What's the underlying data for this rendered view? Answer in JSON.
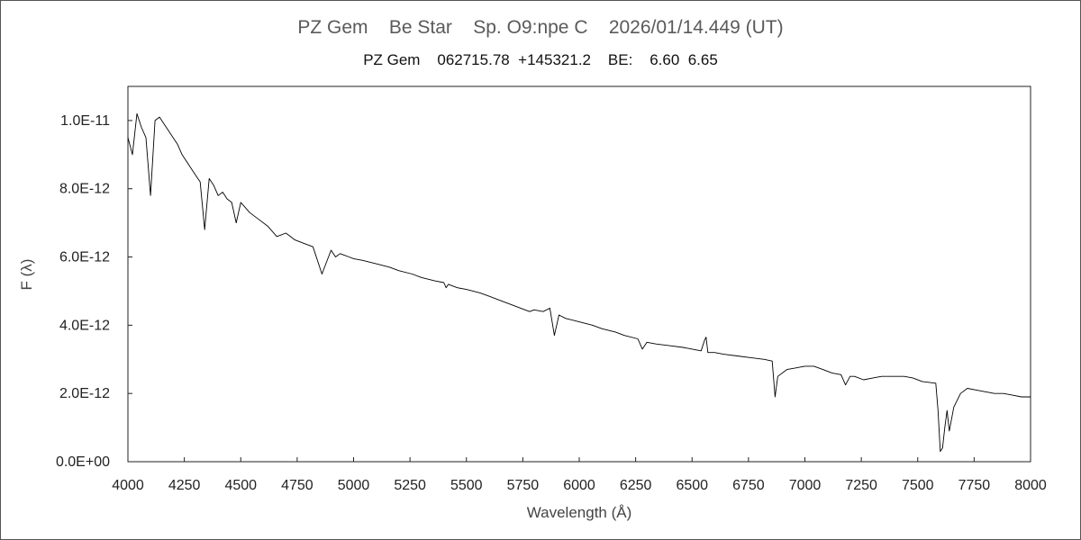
{
  "chart_data": {
    "type": "line",
    "title": "PZ Gem    Be Star    Sp. O9:npe C    2026/01/14.449 (UT)",
    "subtitle": "PZ Gem    062715.78  +145321.2    BE:    6.60  6.65",
    "xlabel": "Wavelength (Å)",
    "ylabel": "F (λ)",
    "xlim": [
      4000,
      8000
    ],
    "ylim": [
      0,
      1.1e-11
    ],
    "grid": false,
    "legend": "none",
    "line_color": "#000000",
    "x_ticks": [
      4000,
      4250,
      4500,
      4750,
      5000,
      5250,
      5500,
      5750,
      6000,
      6250,
      6500,
      6750,
      7000,
      7250,
      7500,
      7750,
      8000
    ],
    "x_tick_labels": [
      "4000",
      "4250",
      "4500",
      "4750",
      "5000",
      "5250",
      "5500",
      "5750",
      "6000",
      "6250",
      "6500",
      "6750",
      "7000",
      "7250",
      "7500",
      "7750",
      "8000"
    ],
    "y_ticks": [
      0,
      2e-12,
      4e-12,
      6e-12,
      8e-12,
      1e-11
    ],
    "y_tick_labels": [
      "0.0E+00",
      "2.0E-12",
      "4.0E-12",
      "6.0E-12",
      "8.0E-12",
      "1.0E-11"
    ],
    "series": [
      {
        "x": [
          4000,
          4020,
          4040,
          4060,
          4080,
          4100,
          4120,
          4140,
          4160,
          4180,
          4200,
          4220,
          4240,
          4260,
          4280,
          4300,
          4320,
          4340,
          4360,
          4380,
          4400,
          4420,
          4440,
          4460,
          4480,
          4500,
          4540,
          4580,
          4620,
          4660,
          4700,
          4740,
          4780,
          4820,
          4860,
          4900,
          4920,
          4940,
          4980,
          5000,
          5040,
          5100,
          5160,
          5200,
          5260,
          5300,
          5360,
          5400,
          5410,
          5420,
          5460,
          5500,
          5560,
          5600,
          5660,
          5700,
          5740,
          5780,
          5800,
          5840,
          5870,
          5890,
          5910,
          5940,
          6000,
          6060,
          6100,
          6160,
          6200,
          6260,
          6280,
          6300,
          6340,
          6400,
          6460,
          6500,
          6540,
          6555,
          6562,
          6570,
          6600,
          6640,
          6700,
          6760,
          6820,
          6855,
          6868,
          6880,
          6920,
          6960,
          7000,
          7040,
          7080,
          7120,
          7160,
          7180,
          7200,
          7220,
          7260,
          7300,
          7340,
          7400,
          7440,
          7480,
          7520,
          7580,
          7590,
          7600,
          7610,
          7620,
          7630,
          7640,
          7660,
          7690,
          7720,
          7760,
          7800,
          7840,
          7880,
          7920,
          7960,
          8000
        ],
        "y": [
          9.5e-12,
          9e-12,
          1.02e-11,
          9.8e-12,
          9.5e-12,
          7.8e-12,
          1e-11,
          1.01e-11,
          9.9e-12,
          9.7e-12,
          9.5e-12,
          9.3e-12,
          9e-12,
          8.8e-12,
          8.6e-12,
          8.4e-12,
          8.2e-12,
          6.8e-12,
          8.3e-12,
          8.1e-12,
          7.8e-12,
          7.9e-12,
          7.7e-12,
          7.6e-12,
          7e-12,
          7.6e-12,
          7.3e-12,
          7.1e-12,
          6.9e-12,
          6.6e-12,
          6.7e-12,
          6.5e-12,
          6.4e-12,
          6.3e-12,
          5.5e-12,
          6.2e-12,
          6e-12,
          6.1e-12,
          6e-12,
          5.95e-12,
          5.9e-12,
          5.8e-12,
          5.7e-12,
          5.6e-12,
          5.5e-12,
          5.4e-12,
          5.3e-12,
          5.25e-12,
          5.1e-12,
          5.2e-12,
          5.1e-12,
          5.05e-12,
          4.95e-12,
          4.85e-12,
          4.7e-12,
          4.6e-12,
          4.5e-12,
          4.4e-12,
          4.45e-12,
          4.4e-12,
          4.5e-12,
          3.7e-12,
          4.3e-12,
          4.2e-12,
          4.1e-12,
          4e-12,
          3.9e-12,
          3.8e-12,
          3.7e-12,
          3.6e-12,
          3.3e-12,
          3.5e-12,
          3.45e-12,
          3.4e-12,
          3.35e-12,
          3.3e-12,
          3.25e-12,
          3.55e-12,
          3.65e-12,
          3.2e-12,
          3.2e-12,
          3.15e-12,
          3.1e-12,
          3.05e-12,
          3e-12,
          2.95e-12,
          1.9e-12,
          2.5e-12,
          2.7e-12,
          2.75e-12,
          2.8e-12,
          2.8e-12,
          2.7e-12,
          2.6e-12,
          2.55e-12,
          2.25e-12,
          2.5e-12,
          2.5e-12,
          2.4e-12,
          2.45e-12,
          2.5e-12,
          2.5e-12,
          2.5e-12,
          2.45e-12,
          2.35e-12,
          2.3e-12,
          1.5e-12,
          3e-13,
          4e-13,
          1e-12,
          1.5e-12,
          9e-13,
          1.6e-12,
          2e-12,
          2.15e-12,
          2.1e-12,
          2.05e-12,
          2e-12,
          2e-12,
          1.95e-12,
          1.9e-12,
          1.9e-12
        ]
      }
    ]
  }
}
